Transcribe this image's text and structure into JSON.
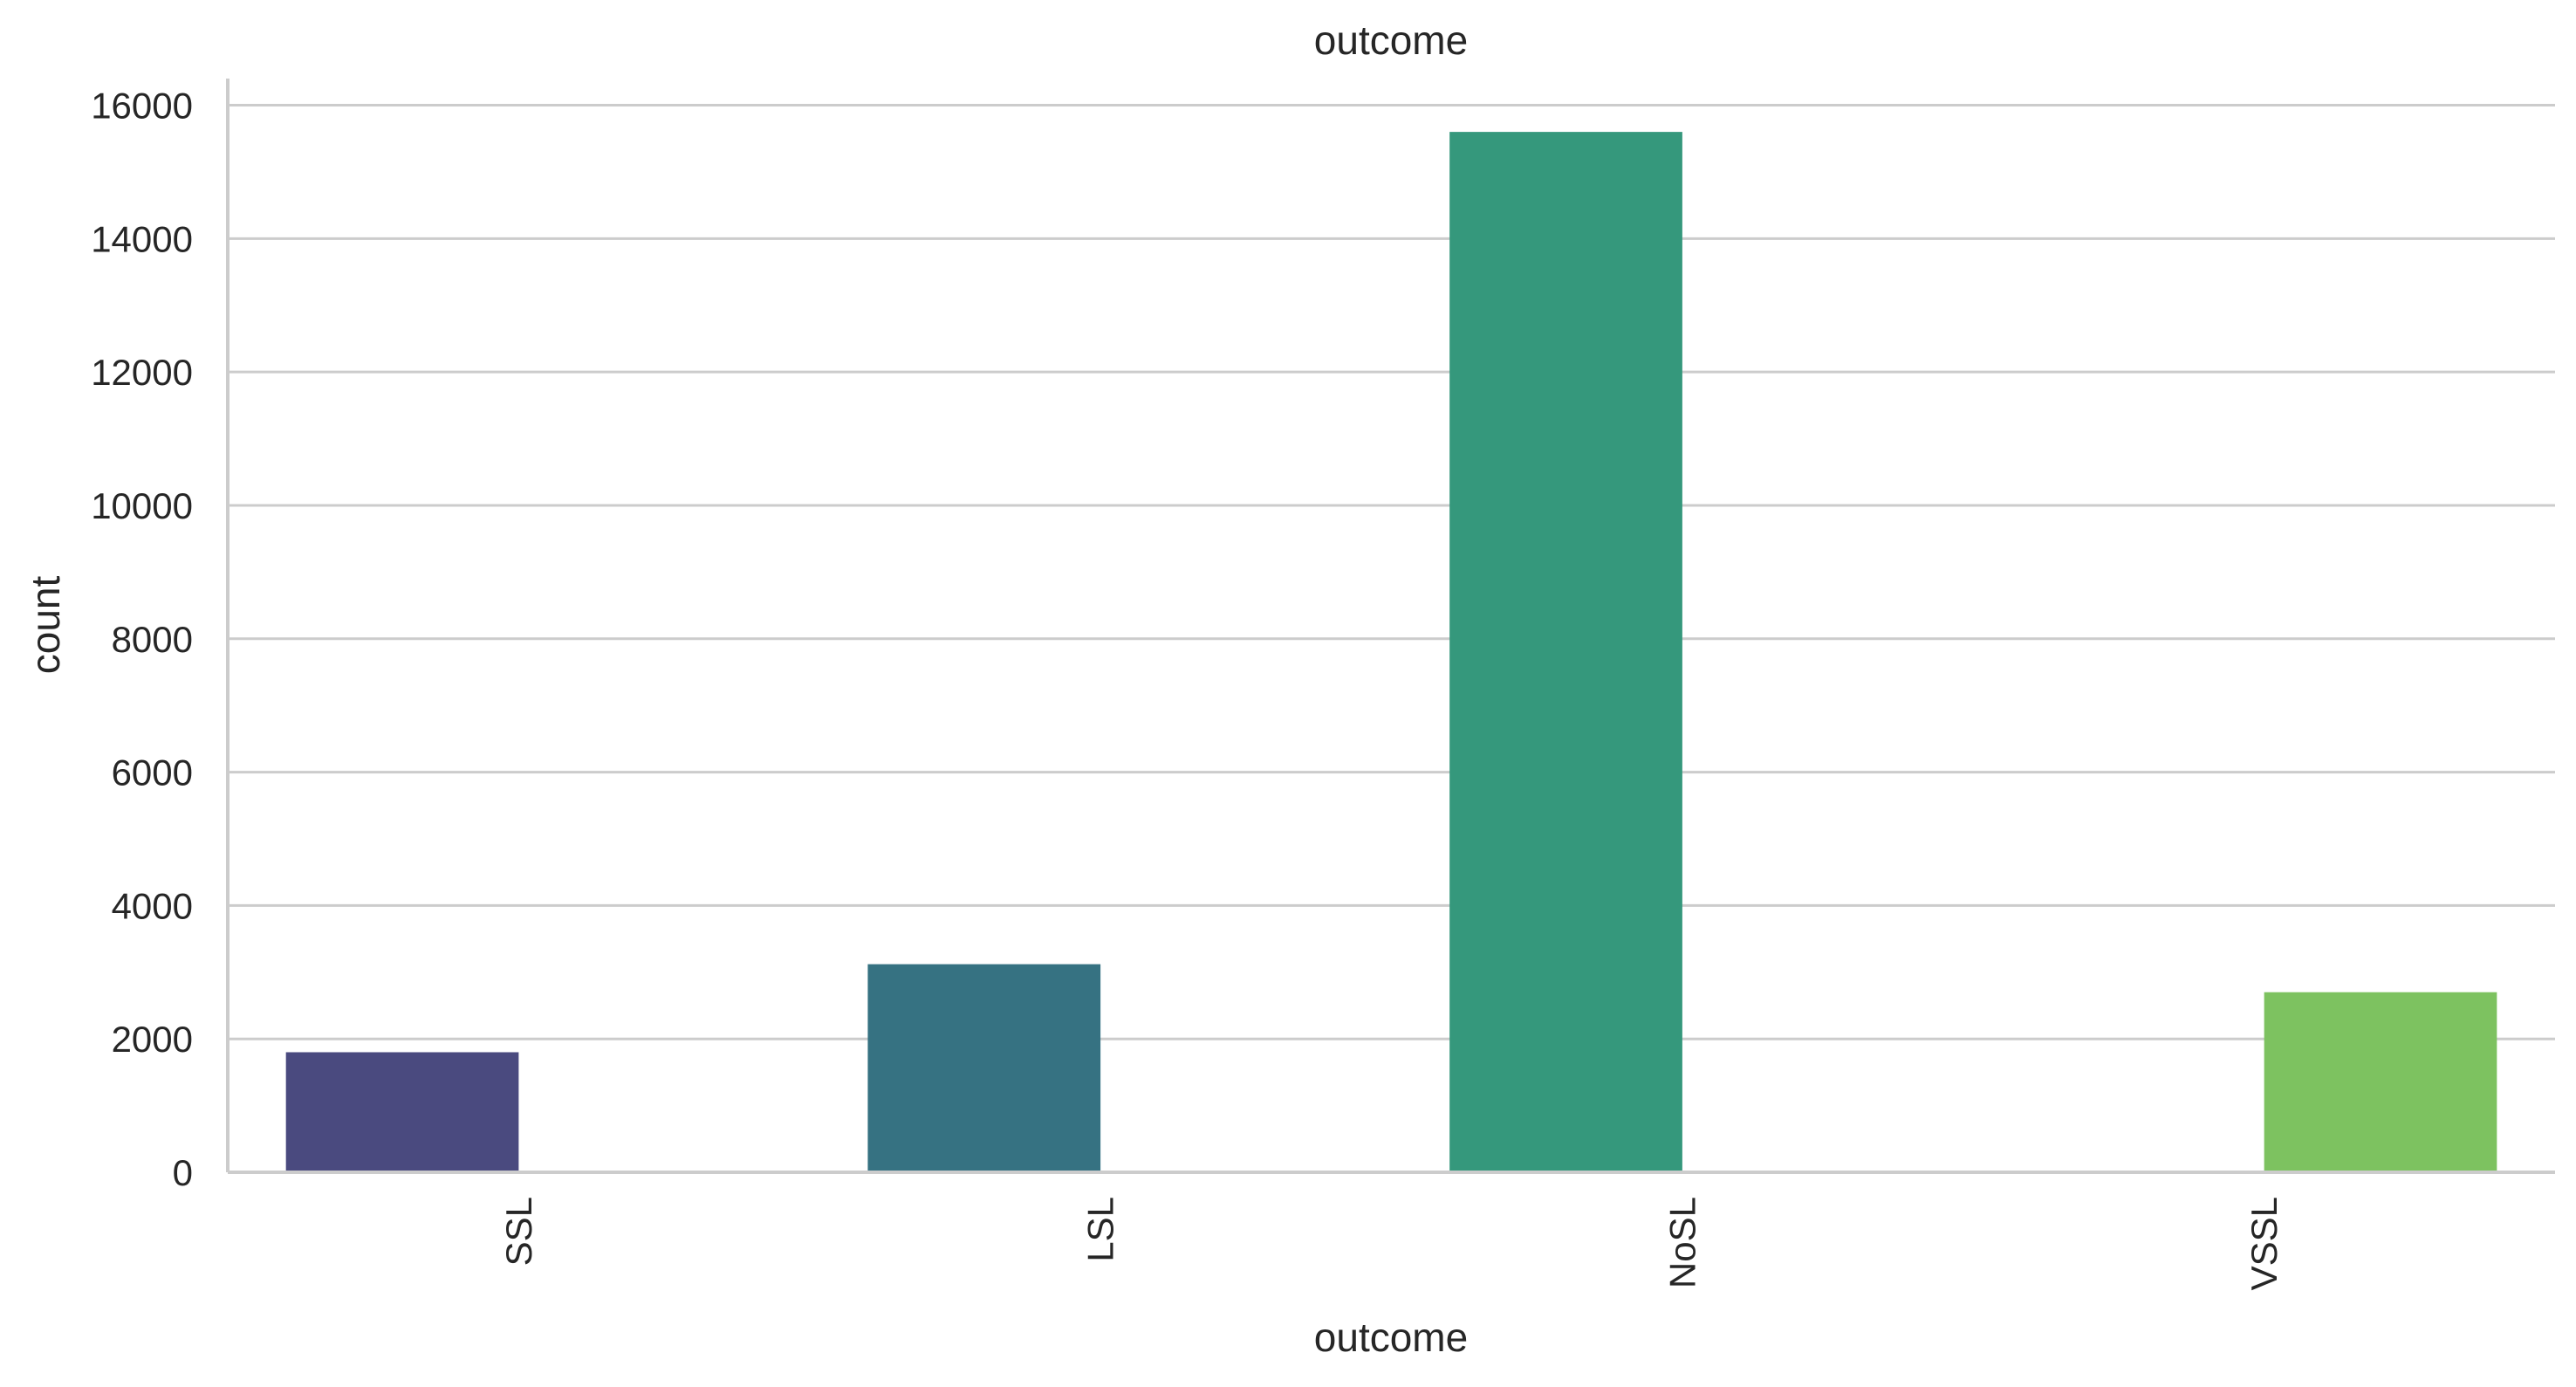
{
  "chart_data": {
    "type": "bar",
    "title": "outcome",
    "xlabel": "outcome",
    "ylabel": "count",
    "categories": [
      "SSL",
      "LSL",
      "NoSL",
      "VSSL"
    ],
    "series": [
      {
        "values": [
          1800,
          3120,
          15600,
          null
        ]
      },
      {
        "values": [
          null,
          null,
          null,
          2700
        ]
      }
    ],
    "colors": [
      "#4a4a7f",
      "#367282",
      "#35987c",
      "#7dc260"
    ],
    "ylim": [
      0,
      16400
    ],
    "yticks": [
      0,
      2000,
      4000,
      6000,
      8000,
      10000,
      12000,
      14000,
      16000
    ],
    "grid": "horizontal",
    "legend": "none"
  }
}
